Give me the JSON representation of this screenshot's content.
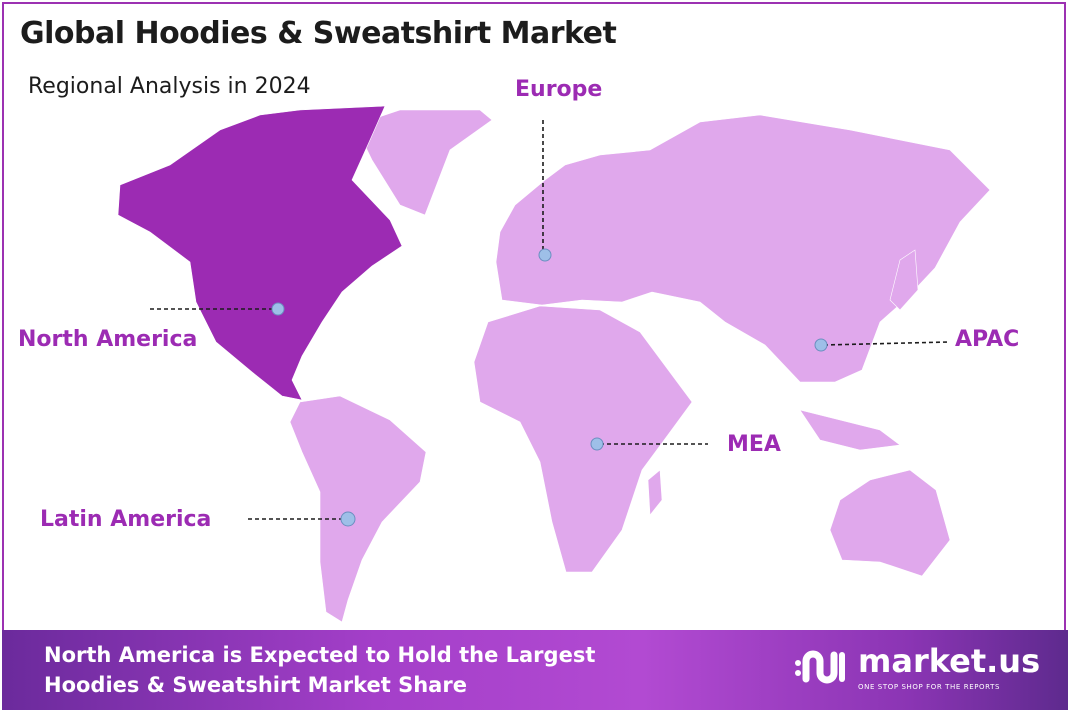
{
  "header": {
    "title": "Global Hoodies & Sweatshirt Market",
    "subtitle": "Regional Analysis in 2024"
  },
  "colors": {
    "highlight": "#9c2bb3",
    "other_regions": "#e0a8ec",
    "marker": "#9ebfe8",
    "border": "#9c31b2"
  },
  "regions": [
    {
      "name": "North America",
      "highlighted": true
    },
    {
      "name": "Europe",
      "highlighted": false
    },
    {
      "name": "APAC",
      "highlighted": false
    },
    {
      "name": "MEA",
      "highlighted": false
    },
    {
      "name": "Latin America",
      "highlighted": false
    }
  ],
  "footer": {
    "line1": "North America is Expected to Hold the Largest",
    "line2": "Hoodies & Sweatshirt Market Share",
    "logo_name": "market.us",
    "logo_tagline": "ONE STOP SHOP FOR THE REPORTS"
  }
}
